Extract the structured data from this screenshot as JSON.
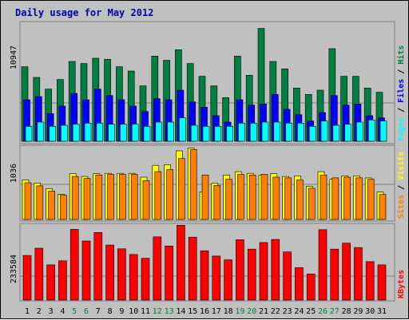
{
  "colors": {
    "background": "#c0c0c0",
    "title": "#0000aa",
    "pages": "#00ffff",
    "files": "#0000ff",
    "hits": "#008040",
    "sites": "#ff8000",
    "visits": "#ffff00",
    "kbytes": "#ff0000",
    "weekend": "#008040",
    "weekday": "#000000"
  },
  "chart_data": [
    {
      "type": "bar",
      "title": "Daily usage for May 2012",
      "ylabel_parts": [
        "Pages",
        "Files",
        "Hits"
      ],
      "ytick": "10947",
      "ymax": 10947,
      "categories": [
        "1",
        "2",
        "3",
        "4",
        "5",
        "6",
        "7",
        "8",
        "9",
        "10",
        "11",
        "12",
        "13",
        "14",
        "15",
        "16",
        "17",
        "18",
        "19",
        "20",
        "21",
        "22",
        "23",
        "24",
        "25",
        "26",
        "27",
        "28",
        "29",
        "30",
        "31"
      ],
      "series": [
        {
          "name": "Hits",
          "values": [
            7000,
            6000,
            4900,
            5800,
            7500,
            7300,
            7800,
            7700,
            7000,
            6600,
            5200,
            8000,
            7600,
            8600,
            7300,
            6100,
            5200,
            4100,
            8000,
            6200,
            10600,
            7500,
            6800,
            5000,
            4400,
            4800,
            8700,
            6100,
            6100,
            5000,
            4600
          ]
        },
        {
          "name": "Files",
          "values": [
            3900,
            4200,
            2600,
            3300,
            4500,
            3900,
            4900,
            4300,
            3900,
            3300,
            2800,
            4000,
            3900,
            4800,
            3700,
            3200,
            2400,
            1800,
            3900,
            3400,
            3500,
            4400,
            3000,
            2500,
            1900,
            2700,
            4300,
            3400,
            3500,
            2400,
            2200
          ]
        },
        {
          "name": "Pages",
          "values": [
            1400,
            1800,
            1400,
            1500,
            1600,
            1700,
            1700,
            1600,
            1600,
            1600,
            1400,
            1800,
            1800,
            2200,
            1500,
            1400,
            1400,
            1400,
            1700,
            1700,
            1800,
            1800,
            1700,
            1700,
            1400,
            1900,
            1500,
            1600,
            1800,
            2000,
            1900
          ]
        }
      ]
    },
    {
      "type": "bar",
      "ylabel_parts": [
        "Sites",
        "Visits"
      ],
      "ytick": "1036",
      "ymax": 1036,
      "categories": [
        "1",
        "2",
        "3",
        "4",
        "5",
        "6",
        "7",
        "8",
        "9",
        "10",
        "11",
        "12",
        "13",
        "14",
        "15",
        "16",
        "17",
        "18",
        "19",
        "20",
        "21",
        "22",
        "23",
        "24",
        "25",
        "26",
        "27",
        "28",
        "29",
        "30",
        "31"
      ],
      "series": [
        {
          "name": "Visits",
          "values": [
            570,
            525,
            445,
            365,
            660,
            620,
            660,
            665,
            665,
            665,
            610,
            780,
            790,
            990,
            1030,
            400,
            520,
            640,
            690,
            665,
            640,
            660,
            620,
            630,
            480,
            690,
            580,
            630,
            630,
            600,
            395
          ]
        },
        {
          "name": "Sites",
          "values": [
            530,
            485,
            410,
            350,
            620,
            590,
            640,
            650,
            650,
            650,
            560,
            690,
            720,
            880,
            1010,
            640,
            490,
            580,
            650,
            640,
            650,
            610,
            600,
            570,
            450,
            640,
            600,
            610,
            600,
            580,
            360
          ]
        }
      ]
    },
    {
      "type": "bar",
      "ylabel_parts": [
        "KBytes"
      ],
      "ytick": "233584",
      "ymax": 233584,
      "categories": [
        "1",
        "2",
        "3",
        "4",
        "5",
        "6",
        "7",
        "8",
        "9",
        "10",
        "11",
        "12",
        "13",
        "14",
        "15",
        "16",
        "17",
        "18",
        "19",
        "20",
        "21",
        "22",
        "23",
        "24",
        "25",
        "26",
        "27",
        "28",
        "29",
        "30",
        "31"
      ],
      "series": [
        {
          "name": "KBytes",
          "values": [
            142000,
            165000,
            112000,
            125000,
            225000,
            188000,
            215000,
            175000,
            163000,
            145000,
            133000,
            201000,
            172000,
            238000,
            200000,
            157000,
            140000,
            128000,
            192000,
            162000,
            183000,
            193000,
            153000,
            103000,
            83000,
            224000,
            162000,
            181000,
            167000,
            122000,
            112000
          ]
        }
      ]
    }
  ]
}
